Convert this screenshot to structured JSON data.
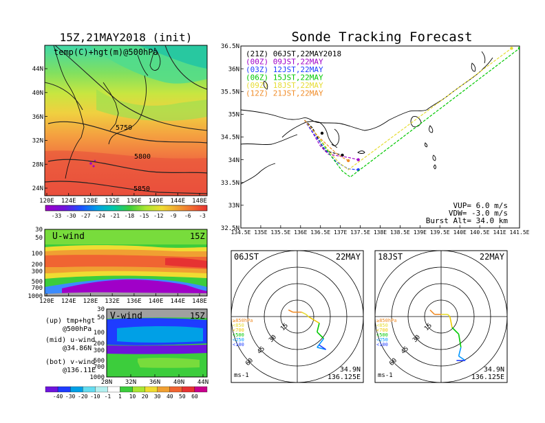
{
  "left_title": "15Z,21MAY2018 (init)",
  "main_title": "Sonde Tracking Forecast",
  "colors": {
    "track_21z": "#000000",
    "track_00z": "#a000c8",
    "track_03z": "#1e3cff",
    "track_06z": "#00c800",
    "track_09z": "#e6dc32",
    "track_12z": "#f08c28",
    "coast": "#000000"
  },
  "panel_temp": {
    "label": "temp(C)+hgt(m)@500hPa",
    "lat_ticks": [
      "44N",
      "40N",
      "36N",
      "32N",
      "28N",
      "24N"
    ],
    "lon_ticks": [
      "120E",
      "124E",
      "128E",
      "132E",
      "136E",
      "140E",
      "144E",
      "148E"
    ],
    "contours": [
      "5750",
      "5800",
      "5850"
    ],
    "colorbar_labels": [
      "-33",
      "-30",
      "-27",
      "-24",
      "-21",
      "-18",
      "-15",
      "-12",
      "-9",
      "-6",
      "-3"
    ]
  },
  "panel_u": {
    "label": "U-wind",
    "time": "15Z",
    "p_ticks": [
      "30",
      "50",
      "100",
      "200",
      "300",
      "500",
      "700",
      "1000"
    ],
    "lon_ticks": [
      "120E",
      "124E",
      "128E",
      "132E",
      "136E",
      "140E",
      "144E",
      "148E"
    ]
  },
  "panel_v": {
    "label": "V-wind",
    "time": "15Z",
    "p_ticks": [
      "30",
      "50",
      "100",
      "200",
      "300",
      "500",
      "700",
      "1000"
    ],
    "lat_ticks": [
      "28N",
      "32N",
      "36N",
      "40N",
      "44N"
    ]
  },
  "notes": [
    {
      "a": "(up) tmp+hgt",
      "b": "@500hPa"
    },
    {
      "a": "(mid) u-wind",
      "b": "@34.86N"
    },
    {
      "a": "(bot) v-wind",
      "b": "@136.11E"
    }
  ],
  "wind_colorbar_labels": [
    "-40",
    "-30",
    "-20",
    "-10",
    "-1",
    "1",
    "10",
    "20",
    "30",
    "40",
    "50",
    "60"
  ],
  "tracking": {
    "legend": [
      {
        "text": "(21Z) 06JST,22MAY2018",
        "color": "#000000"
      },
      {
        "text": "(00Z) 09JST,22MAY",
        "color": "#a000c8"
      },
      {
        "text": "(03Z) 12JST,22MAY",
        "color": "#1e3cff"
      },
      {
        "text": "(06Z) 15JST,22MAY",
        "color": "#00c800"
      },
      {
        "text": "(09Z) 18JST,22MAY",
        "color": "#e6dc32"
      },
      {
        "text": "(12Z) 21JST,22MAY",
        "color": "#f08c28"
      }
    ],
    "lat_ticks": [
      "36.5N",
      "36N",
      "35.5N",
      "35N",
      "34.5N",
      "34N",
      "33.5N",
      "33N",
      "32.5N"
    ],
    "lon_ticks": [
      "134.5E",
      "135E",
      "135.5E",
      "136E",
      "136.5E",
      "137E",
      "137.5E",
      "138E",
      "138.5E",
      "139E",
      "139.5E",
      "140E",
      "140.5E",
      "141E",
      "141.5E"
    ],
    "info": [
      "VUP= 6.0 m/s",
      "VDW= -3.0 m/s",
      "Burst Alt= 34.0 km"
    ]
  },
  "hodo_left": {
    "time": "06JST",
    "date": "22MAY",
    "rings": [
      "15",
      "30",
      "45",
      "60"
    ],
    "levels": [
      "≥850hPa",
      "<850",
      "<700",
      "<500",
      "<250",
      "<100"
    ],
    "level_colors": [
      "#f08c28",
      "#e6dc32",
      "#f0c800",
      "#00c800",
      "#0096ff",
      "#1e3cff"
    ],
    "loc_lat": "34.9N",
    "loc_lon": "136.125E",
    "unit": "ms-1"
  },
  "hodo_right": {
    "time": "18JST",
    "date": "22MAY",
    "rings": [
      "15",
      "30",
      "45",
      "60"
    ],
    "levels": [
      "≥850hPa",
      "<850",
      "<700",
      "<500",
      "<250",
      "<100"
    ],
    "level_colors": [
      "#f08c28",
      "#e6dc32",
      "#f0c800",
      "#00c800",
      "#0096ff",
      "#1e3cff"
    ],
    "loc_lat": "34.9N",
    "loc_lon": "136.125E",
    "unit": "ms-1"
  },
  "chart_data": [
    {
      "type": "heatmap",
      "title": "temp(C)+hgt(m)@500hPa",
      "xlabel": "",
      "ylabel": "",
      "xlim": [
        120,
        150
      ],
      "ylim": [
        22,
        48
      ],
      "contour_labels": [
        5750,
        5800,
        5850
      ],
      "colorbar": [
        -33,
        -30,
        -27,
        -24,
        -21,
        -18,
        -15,
        -12,
        -9,
        -6,
        -3
      ]
    },
    {
      "type": "heatmap",
      "title": "U-wind",
      "xlim": [
        120,
        150
      ],
      "ylim": [
        1000,
        30
      ],
      "colorbar": [
        -40,
        -30,
        -20,
        -10,
        -1,
        1,
        10,
        20,
        30,
        40,
        50,
        60
      ]
    },
    {
      "type": "heatmap",
      "title": "V-wind",
      "xlim": [
        28,
        44
      ],
      "ylim": [
        1000,
        30
      ],
      "colorbar": [
        -40,
        -30,
        -20,
        -10,
        -1,
        1,
        10,
        20,
        30,
        40,
        50,
        60
      ]
    },
    {
      "type": "line",
      "title": "Sonde Tracking Forecast",
      "xlim": [
        134.5,
        141.5
      ],
      "ylim": [
        32.5,
        36.5
      ],
      "launch": [
        136.125,
        34.9
      ],
      "series": [
        {
          "name": "(21Z) 06JST,22MAY2018",
          "x": [
            136.1,
            136.3,
            136.45,
            136.6,
            137.05
          ],
          "y": [
            34.87,
            34.7,
            34.45,
            34.2,
            34.1
          ]
        },
        {
          "name": "(00Z) 09JST,22MAY",
          "x": [
            136.1,
            136.3,
            136.5,
            136.7,
            137.2,
            137.45
          ],
          "y": [
            34.87,
            34.6,
            34.3,
            34.12,
            34.05,
            34.0
          ]
        },
        {
          "name": "(03Z) 12JST,22MAY",
          "x": [
            136.1,
            136.35,
            136.6,
            136.9,
            137.2,
            137.45
          ],
          "y": [
            34.87,
            34.55,
            34.25,
            33.95,
            33.8,
            33.78
          ]
        },
        {
          "name": "(06Z) 15JST,22MAY",
          "x": [
            136.1,
            136.45,
            136.75,
            137.05,
            137.25,
            141.5
          ],
          "y": [
            34.87,
            34.5,
            34.1,
            33.75,
            33.62,
            36.45
          ]
        },
        {
          "name": "(09Z) 18JST,22MAY",
          "x": [
            136.1,
            136.45,
            136.75,
            136.95,
            137.2,
            141.3
          ],
          "y": [
            34.87,
            34.5,
            34.15,
            33.95,
            33.78,
            36.45
          ]
        },
        {
          "name": "(12Z) 21JST,22MAY",
          "x": [
            136.1,
            136.4,
            136.7,
            136.95,
            137.2
          ],
          "y": [
            34.87,
            34.55,
            34.3,
            34.1,
            33.98
          ]
        }
      ]
    },
    {
      "type": "line",
      "title": "06JST 22MAY",
      "xlabel": "ms-1",
      "rings": [
        15,
        30,
        45,
        60
      ],
      "u": [
        -4,
        -2,
        2,
        4,
        5,
        10,
        9,
        12,
        9,
        13,
        10
      ],
      "v": [
        3,
        2,
        2,
        1,
        0,
        -3,
        -7,
        -10,
        -14,
        -15,
        -13
      ]
    },
    {
      "type": "line",
      "title": "18JST 22MAY",
      "xlabel": "ms-1",
      "rings": [
        15,
        30,
        45,
        60
      ],
      "u": [
        -5,
        -3,
        0,
        3,
        4,
        5,
        8,
        9,
        8,
        11,
        7
      ],
      "v": [
        3,
        1,
        1,
        1,
        0,
        -5,
        -8,
        -14,
        -18,
        -20,
        -20
      ]
    }
  ]
}
